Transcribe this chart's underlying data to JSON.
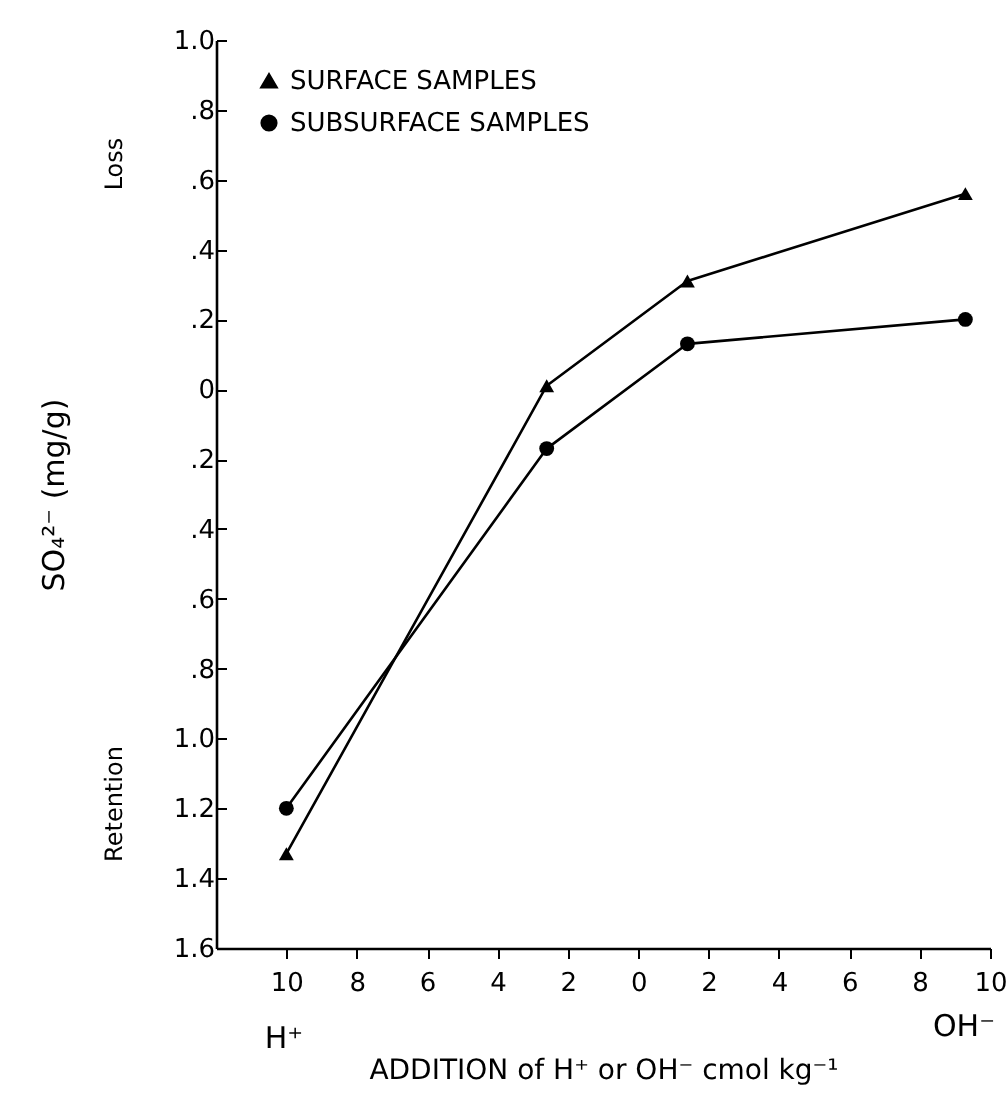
{
  "chart_data": {
    "type": "line",
    "xlabel": "ADDITION of H⁺ or OH⁻ cmol kg⁻¹",
    "ylabel": "SO₄²⁻ (mg/g)",
    "annotations": [
      "Loss",
      "Retention",
      "H⁺",
      "OH⁻"
    ],
    "x": [
      -10,
      -2.6,
      1.4,
      9.3
    ],
    "series": [
      {
        "name": "SURFACE SAMPLES",
        "color": "#000000",
        "marker": "triangle",
        "values": [
          -1.33,
          0.01,
          0.31,
          0.56
        ]
      },
      {
        "name": "SUBSURFACE SAMPLES",
        "color": "#000000",
        "marker": "circle",
        "values": [
          -1.2,
          -0.17,
          0.13,
          0.2
        ]
      }
    ],
    "xlim": [
      -12,
      10
    ],
    "ylim": [
      -1.6,
      1.0
    ],
    "xticks": [
      {
        "value": -10,
        "label": "10"
      },
      {
        "value": -8,
        "label": "8"
      },
      {
        "value": -6,
        "label": "6"
      },
      {
        "value": -4,
        "label": "4"
      },
      {
        "value": -2,
        "label": "2"
      },
      0,
      2,
      4,
      6,
      8,
      10
    ],
    "yticks": [
      {
        "value": -1.6,
        "label": "1.6"
      },
      {
        "value": -1.4,
        "label": "1.4"
      },
      {
        "value": -1.2,
        "label": "1.2"
      },
      {
        "value": -1.0,
        "label": "1.0"
      },
      {
        "value": -0.8,
        "label": ".8"
      },
      {
        "value": -0.6,
        "label": ".6"
      },
      {
        "value": -0.4,
        "label": ".4"
      },
      {
        "value": -0.2,
        "label": ".2"
      },
      0,
      {
        "value": 0.2,
        "label": ".2"
      },
      {
        "value": 0.4,
        "label": ".4"
      },
      {
        "value": 0.6,
        "label": ".6"
      },
      {
        "value": 0.8,
        "label": ".8"
      },
      {
        "value": 1.0,
        "label": "1.0"
      }
    ],
    "legend": "top left",
    "grid": false,
    "line_style": "solid"
  }
}
